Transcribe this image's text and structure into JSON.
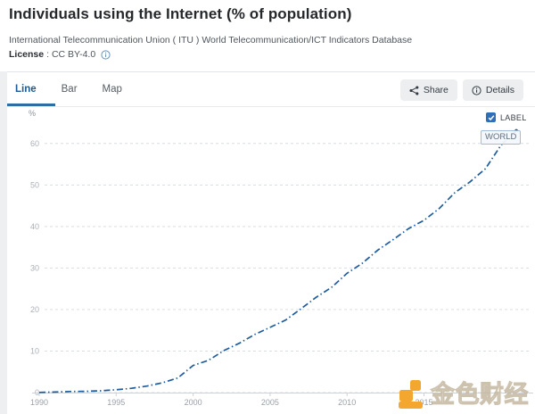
{
  "header": {
    "title": "Individuals using the Internet (% of population)",
    "source": "International Telecommunication Union ( ITU ) World Telecommunication/ICT Indicators Database",
    "license_label": "License",
    "license_value": ": CC BY-4.0"
  },
  "toolbar": {
    "tabs": [
      {
        "label": "Line",
        "active": true
      },
      {
        "label": "Bar",
        "active": false
      },
      {
        "label": "Map",
        "active": false
      }
    ],
    "share_label": "Share",
    "details_label": "Details"
  },
  "chart_controls": {
    "label_checkbox": {
      "label": "LABEL",
      "checked": true
    },
    "series_tag": "WORLD"
  },
  "watermark": {
    "text": "金色财经"
  },
  "colors": {
    "line": "#1f5c9e",
    "accent_blue": "#2e6da4",
    "checkbox_blue": "#2f6fb7",
    "grid": "#dadde1",
    "axis_line": "#cdd2d7",
    "axis_text": "#aab0b6",
    "x_label_text": "#9aa1a8",
    "unit_text": "#8d949b",
    "watermark_orange": "#f3a72e"
  },
  "chart_data": {
    "type": "line",
    "title": "Individuals using the Internet (% of population)",
    "xlabel": "",
    "ylabel": "%",
    "x_ticks": [
      1990,
      1995,
      2000,
      2005,
      2010,
      2015
    ],
    "y_ticks": [
      0,
      10,
      20,
      30,
      40,
      50,
      60
    ],
    "xlim": [
      1990,
      2022
    ],
    "ylim": [
      0,
      65
    ],
    "grid": "horizontal-dashed",
    "legend_position": "annotation-on-line",
    "series": [
      {
        "name": "WORLD",
        "x": [
          1990,
          1991,
          1992,
          1993,
          1994,
          1995,
          1996,
          1997,
          1998,
          1999,
          2000,
          2001,
          2002,
          2003,
          2004,
          2005,
          2006,
          2007,
          2008,
          2009,
          2010,
          2011,
          2012,
          2013,
          2014,
          2015,
          2016,
          2017,
          2018,
          2019,
          2020,
          2021
        ],
        "values": [
          0.05,
          0.12,
          0.25,
          0.3,
          0.44,
          0.68,
          1.04,
          1.56,
          2.36,
          3.51,
          6.53,
          7.78,
          10.13,
          11.88,
          13.99,
          15.7,
          17.46,
          20.16,
          22.97,
          25.36,
          28.73,
          31.18,
          34.32,
          36.85,
          39.49,
          41.49,
          44.37,
          48.13,
          50.78,
          53.93,
          59.56,
          63.1
        ]
      }
    ]
  }
}
